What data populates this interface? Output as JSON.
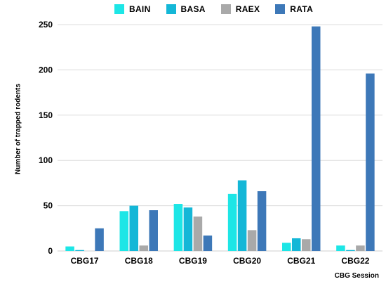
{
  "chart_data": {
    "type": "bar",
    "title": "",
    "xlabel": "CBG Session",
    "ylabel": "Number of trapped rodents",
    "categories": [
      "CBG17",
      "CBG18",
      "CBG19",
      "CBG20",
      "CBG21",
      "CBG22"
    ],
    "series": [
      {
        "name": "BAIN",
        "color": "#1de6e6",
        "values": [
          5,
          44,
          52,
          63,
          9,
          6
        ]
      },
      {
        "name": "BASA",
        "color": "#14b7d7",
        "values": [
          1,
          50,
          48,
          78,
          14,
          1
        ]
      },
      {
        "name": "RAEX",
        "color": "#a9a9a9",
        "values": [
          0,
          6,
          38,
          23,
          13,
          6
        ]
      },
      {
        "name": "RATA",
        "color": "#3d78b8",
        "values": [
          25,
          45,
          17,
          66,
          248,
          196
        ]
      }
    ],
    "ylim": [
      0,
      250
    ],
    "yticks": [
      0,
      50,
      100,
      150,
      200,
      250
    ],
    "grid": "horizontal",
    "legend": "top"
  }
}
